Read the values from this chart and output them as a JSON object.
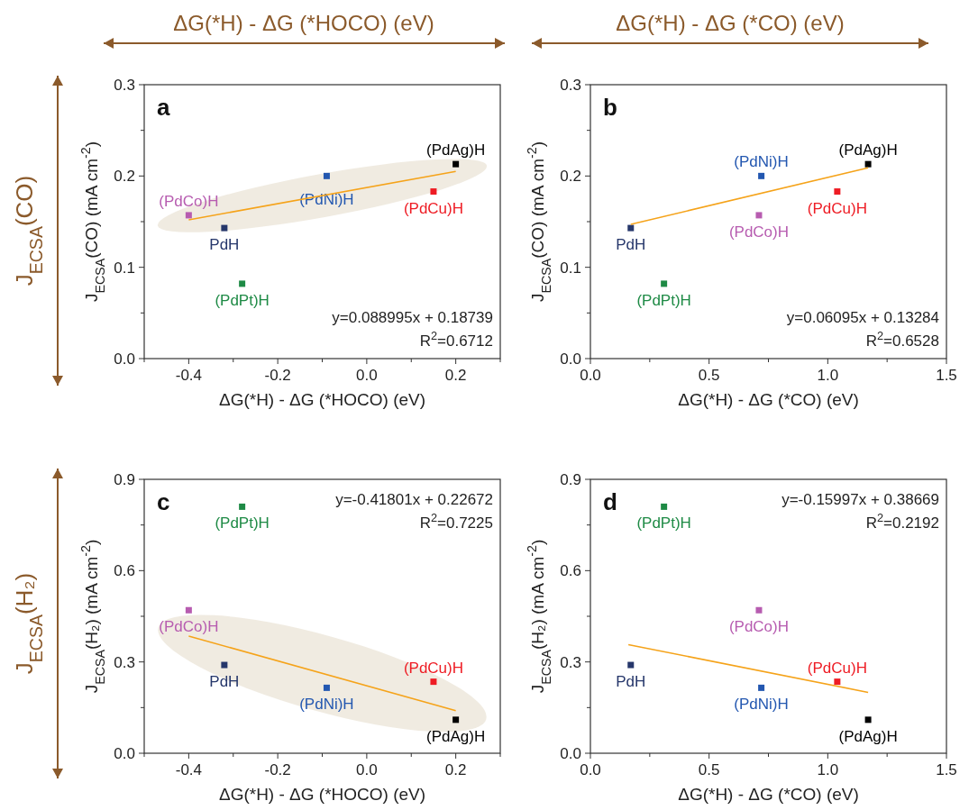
{
  "chart_data": [
    {
      "type": "scatter",
      "title": "a",
      "xlabel": "ΔG(*H) - ΔG (*HOCO) (eV)",
      "ylabel": "J$_{ECSA}$(CO) (mA cm$^{-2}$)",
      "xlim": [
        -0.5,
        0.3
      ],
      "xticks": [
        {
          "value": -0.5,
          "label": null
        },
        -0.4,
        {
          "value": -0.3,
          "label": null
        },
        -0.2,
        {
          "value": -0.1,
          "label": null
        },
        {
          "value": 0,
          "label": "0.0"
        },
        {
          "value": 0.1,
          "label": null
        },
        0.2,
        {
          "value": 0.3,
          "label": null
        }
      ],
      "ylim": [
        0,
        0.3
      ],
      "yticks": [
        {
          "value": 0,
          "label": "0.0"
        },
        {
          "value": 0.05,
          "label": null
        },
        0.1,
        {
          "value": 0.15,
          "label": null
        },
        0.2,
        {
          "value": 0.25,
          "label": null
        },
        0.3
      ],
      "grid": false,
      "marker": "square",
      "annotations": [
        "y=0.088995x + 0.18739",
        "R$^{2}$=0.6712"
      ],
      "series": [
        {
          "name": "PdH",
          "color": "#26376b",
          "x": [
            -0.32
          ],
          "values": [
            0.143
          ]
        },
        {
          "name": "(PdCo)H",
          "color": "#b75cb0",
          "x": [
            -0.4
          ],
          "values": [
            0.157
          ]
        },
        {
          "name": "(PdPt)H",
          "color": "#1e8a45",
          "x": [
            -0.28
          ],
          "values": [
            0.082
          ]
        },
        {
          "name": "(PdNi)H",
          "color": "#2357b0",
          "x": [
            -0.09
          ],
          "values": [
            0.2
          ]
        },
        {
          "name": "(PdCu)H",
          "color": "#ee1c24",
          "x": [
            0.15
          ],
          "values": [
            0.183
          ]
        },
        {
          "name": "(PdAg)H",
          "color": "#000000",
          "x": [
            0.2
          ],
          "values": [
            0.213
          ]
        },
        {
          "type": "line",
          "marker": "none",
          "color": "#f5a31a",
          "x": [
            -0.4,
            0.2
          ],
          "values": [
            0.152,
            0.205
          ]
        }
      ]
    },
    {
      "type": "scatter",
      "title": "b",
      "xlabel": "ΔG(*H) - ΔG (*CO) (eV)",
      "ylabel": "J$_{ECSA}$(CO) (mA cm$^{-2}$)",
      "xlim": [
        0,
        1.5
      ],
      "xticks": [
        {
          "value": 0,
          "label": "0.0"
        },
        {
          "value": 0.25,
          "label": null
        },
        0.5,
        {
          "value": 0.75,
          "label": null
        },
        {
          "value": 1,
          "label": "1.0"
        },
        {
          "value": 1.25,
          "label": null
        },
        1.5
      ],
      "ylim": [
        0,
        0.3
      ],
      "yticks": [
        {
          "value": 0,
          "label": "0.0"
        },
        {
          "value": 0.05,
          "label": null
        },
        0.1,
        {
          "value": 0.15,
          "label": null
        },
        0.2,
        {
          "value": 0.25,
          "label": null
        },
        0.3
      ],
      "grid": false,
      "marker": "square",
      "annotations": [
        "y=0.06095x + 0.13284",
        "R$^{2}$=0.6528"
      ],
      "series": [
        {
          "name": "PdH",
          "color": "#26376b",
          "x": [
            0.17
          ],
          "values": [
            0.143
          ]
        },
        {
          "name": "(PdCo)H",
          "color": "#b75cb0",
          "x": [
            0.71
          ],
          "values": [
            0.157
          ]
        },
        {
          "name": "(PdPt)H",
          "color": "#1e8a45",
          "x": [
            0.31
          ],
          "values": [
            0.082
          ]
        },
        {
          "name": "(PdNi)H",
          "color": "#2357b0",
          "x": [
            0.72
          ],
          "values": [
            0.2
          ]
        },
        {
          "name": "(PdCu)H",
          "color": "#ee1c24",
          "x": [
            1.04
          ],
          "values": [
            0.183
          ]
        },
        {
          "name": "(PdAg)H",
          "color": "#000000",
          "x": [
            1.17
          ],
          "values": [
            0.213
          ]
        },
        {
          "type": "line",
          "marker": "none",
          "color": "#f5a31a",
          "x": [
            0.17,
            1.17
          ],
          "values": [
            0.147,
            0.209
          ]
        }
      ]
    },
    {
      "type": "scatter",
      "title": "c",
      "xlabel": "ΔG(*H) - ΔG (*HOCO) (eV)",
      "ylabel": "J$_{ECSA}$(H₂) (mA cm$^{-2}$)",
      "xlim": [
        -0.5,
        0.3
      ],
      "xticks": [
        {
          "value": -0.5,
          "label": null
        },
        -0.4,
        {
          "value": -0.3,
          "label": null
        },
        -0.2,
        {
          "value": -0.1,
          "label": null
        },
        {
          "value": 0,
          "label": "0.0"
        },
        {
          "value": 0.1,
          "label": null
        },
        0.2,
        {
          "value": 0.3,
          "label": null
        }
      ],
      "ylim": [
        0,
        0.9
      ],
      "yticks": [
        {
          "value": 0,
          "label": "0.0"
        },
        {
          "value": 0.15,
          "label": null
        },
        0.3,
        {
          "value": 0.45,
          "label": null
        },
        0.6,
        {
          "value": 0.75,
          "label": null
        },
        0.9
      ],
      "grid": false,
      "marker": "square",
      "annotations": [
        "y=-0.41801x + 0.22672",
        "R$^{2}$=0.7225"
      ],
      "series": [
        {
          "name": "PdH",
          "color": "#26376b",
          "x": [
            -0.32
          ],
          "values": [
            0.29
          ]
        },
        {
          "name": "(PdCo)H",
          "color": "#b75cb0",
          "x": [
            -0.4
          ],
          "values": [
            0.47
          ]
        },
        {
          "name": "(PdPt)H",
          "color": "#1e8a45",
          "x": [
            -0.28
          ],
          "values": [
            0.81
          ]
        },
        {
          "name": "(PdNi)H",
          "color": "#2357b0",
          "x": [
            -0.09
          ],
          "values": [
            0.215
          ]
        },
        {
          "name": "(PdCu)H",
          "color": "#ee1c24",
          "x": [
            0.15
          ],
          "values": [
            0.235
          ]
        },
        {
          "name": "(PdAg)H",
          "color": "#000000",
          "x": [
            0.2
          ],
          "values": [
            0.11
          ]
        },
        {
          "type": "line",
          "marker": "none",
          "color": "#f5a31a",
          "x": [
            -0.4,
            0.2
          ],
          "values": [
            0.385,
            0.14
          ]
        }
      ]
    },
    {
      "type": "scatter",
      "title": "d",
      "xlabel": "ΔG(*H) - ΔG (*CO) (eV)",
      "ylabel": "J$_{ECSA}$(H₂) (mA cm$^{-2}$)",
      "xlim": [
        0,
        1.5
      ],
      "xticks": [
        {
          "value": 0,
          "label": "0.0"
        },
        {
          "value": 0.25,
          "label": null
        },
        0.5,
        {
          "value": 0.75,
          "label": null
        },
        {
          "value": 1,
          "label": "1.0"
        },
        {
          "value": 1.25,
          "label": null
        },
        1.5
      ],
      "ylim": [
        0,
        0.9
      ],
      "yticks": [
        {
          "value": 0,
          "label": "0.0"
        },
        {
          "value": 0.15,
          "label": null
        },
        0.3,
        {
          "value": 0.45,
          "label": null
        },
        0.6,
        {
          "value": 0.75,
          "label": null
        },
        0.9
      ],
      "grid": false,
      "marker": "square",
      "annotations": [
        "y=-0.15997x + 0.38669",
        "R$^{2}$=0.2192"
      ],
      "series": [
        {
          "name": "PdH",
          "color": "#26376b",
          "x": [
            0.17
          ],
          "values": [
            0.29
          ]
        },
        {
          "name": "(PdCo)H",
          "color": "#b75cb0",
          "x": [
            0.71
          ],
          "values": [
            0.47
          ]
        },
        {
          "name": "(PdPt)H",
          "color": "#1e8a45",
          "x": [
            0.31
          ],
          "values": [
            0.81
          ]
        },
        {
          "name": "(PdNi)H",
          "color": "#2357b0",
          "x": [
            0.72
          ],
          "values": [
            0.215
          ]
        },
        {
          "name": "(PdCu)H",
          "color": "#ee1c24",
          "x": [
            1.04
          ],
          "values": [
            0.235
          ]
        },
        {
          "name": "(PdAg)H",
          "color": "#000000",
          "x": [
            1.17
          ],
          "values": [
            0.11
          ]
        },
        {
          "type": "line",
          "marker": "none",
          "color": "#f5a31a",
          "x": [
            0.16,
            1.17
          ],
          "values": [
            0.357,
            0.2
          ]
        }
      ]
    },
    {
      "type": "other",
      "annotations": [
        "ΔG(*H) - ΔG (*HOCO) (eV)",
        "ΔG(*H) - ΔG (*CO) (eV)",
        "J$_{ECSA}$(CO)",
        "J$_{ECSA}$(H₂)"
      ]
    }
  ]
}
